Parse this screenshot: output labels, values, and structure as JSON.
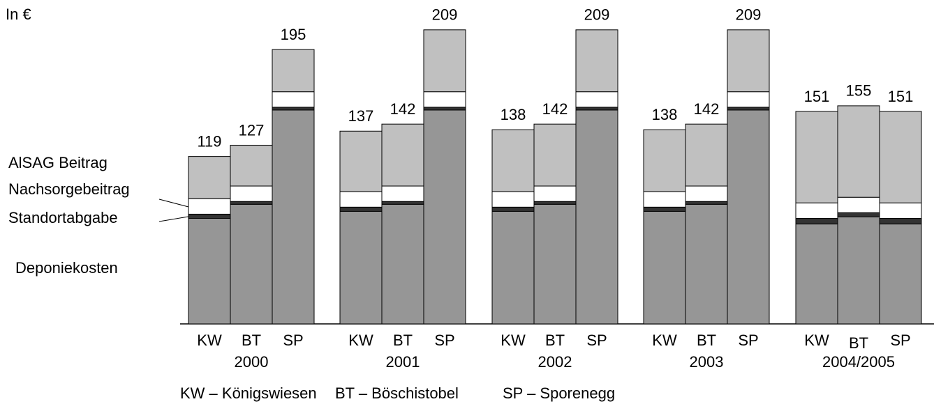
{
  "chart_data": {
    "type": "stacked_bar",
    "unit_label": "In €",
    "categories": [
      "KW",
      "BT",
      "SP",
      "KW",
      "BT",
      "SP",
      "KW",
      "BT",
      "SP",
      "KW",
      "BT",
      "SP",
      "KW",
      "BT",
      "SP"
    ],
    "group_labels": [
      "2000",
      "2001",
      "2002",
      "2003",
      "2004/2005"
    ],
    "series": [
      {
        "name": "Deponiekosten",
        "color": "#969696",
        "values": [
          75,
          85,
          152,
          80,
          85,
          152,
          80,
          85,
          152,
          80,
          85,
          152,
          71,
          76,
          71
        ]
      },
      {
        "name": "Standortabgabe",
        "color": "#333333",
        "values": [
          3,
          2,
          2,
          3,
          2,
          2,
          3,
          2,
          2,
          3,
          2,
          2,
          4,
          3,
          4
        ]
      },
      {
        "name": "Nachsorgebeitrag",
        "color": "#ffffff",
        "values": [
          11,
          11,
          11,
          11,
          11,
          11,
          11,
          11,
          11,
          11,
          11,
          11,
          11,
          11,
          11
        ]
      },
      {
        "name": "AlSAG Beitrag",
        "color": "#c0c0c0",
        "values": [
          30,
          29,
          30,
          43,
          44,
          44,
          44,
          44,
          44,
          44,
          44,
          44,
          65,
          65,
          65
        ]
      }
    ],
    "totals": [
      119,
      127,
      195,
      137,
      142,
      209,
      138,
      142,
      209,
      138,
      142,
      209,
      151,
      155,
      151
    ],
    "footnote": [
      "KW – Königswiesen",
      "BT – Böschistobel",
      "SP – Sporenegg"
    ]
  }
}
